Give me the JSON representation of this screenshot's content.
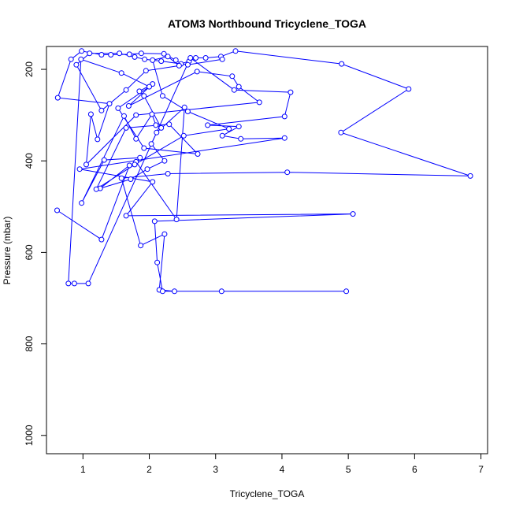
{
  "chart_data": {
    "type": "line",
    "title": "ATOM3 Northbound Tricyclene_TOGA",
    "xlabel": "Tricyclene_TOGA",
    "ylabel": "Pressure (mbar)",
    "xlim": [
      0.45,
      7.1
    ],
    "ylim": [
      1040,
      150
    ],
    "y_inverted": true,
    "xticks": [
      1,
      2,
      3,
      4,
      5,
      6,
      7
    ],
    "yticks": [
      200,
      400,
      600,
      800,
      1000
    ],
    "grid": false,
    "legend": "none",
    "series": [
      {
        "color": "#0000ff",
        "marker": "open-circle",
        "points": [
          [
            0.61,
            508
          ],
          [
            1.28,
            572
          ],
          [
            1.7,
            410
          ],
          [
            1.26,
            460
          ],
          [
            1.72,
            440
          ],
          [
            1.97,
            418
          ],
          [
            2.23,
            400
          ],
          [
            2.03,
            363
          ],
          [
            2.11,
            338
          ],
          [
            2.53,
            283
          ],
          [
            2.41,
            528
          ],
          [
            1.8,
            402
          ],
          [
            1.86,
            393
          ],
          [
            1.32,
            398
          ],
          [
            0.98,
            492
          ],
          [
            1.62,
            302
          ],
          [
            1.8,
            352
          ],
          [
            2.04,
            298
          ],
          [
            2.1,
            322
          ],
          [
            2.18,
            328
          ],
          [
            1.92,
            258
          ],
          [
            1.85,
            248
          ],
          [
            2.05,
            232
          ],
          [
            1.69,
            280
          ],
          [
            2.72,
            205
          ],
          [
            3.25,
            215
          ],
          [
            3.35,
            238
          ],
          [
            3.66,
            272
          ],
          [
            1.8,
            300
          ],
          [
            1.05,
            408
          ],
          [
            1.12,
            298
          ],
          [
            1.22,
            353
          ],
          [
            1.4,
            275
          ],
          [
            0.62,
            262
          ],
          [
            0.82,
            178
          ],
          [
            0.98,
            160
          ],
          [
            1.28,
            168
          ],
          [
            1.42,
            168
          ],
          [
            1.7,
            167
          ],
          [
            1.88,
            165
          ],
          [
            2.22,
            166
          ],
          [
            2.4,
            180
          ],
          [
            2.48,
            188
          ],
          [
            2.6,
            182
          ],
          [
            2.7,
            175
          ],
          [
            2.85,
            175
          ],
          [
            3.08,
            172
          ],
          [
            3.3,
            160
          ],
          [
            4.9,
            188
          ],
          [
            5.91,
            243
          ],
          [
            4.89,
            338
          ],
          [
            6.84,
            433
          ],
          [
            4.08,
            425
          ],
          [
            2.28,
            428
          ],
          [
            1.58,
            438
          ],
          [
            1.87,
            585
          ],
          [
            2.23,
            560
          ],
          [
            2.15,
            682
          ],
          [
            2.38,
            685
          ],
          [
            3.09,
            685
          ],
          [
            4.97,
            685
          ],
          [
            2.2,
            685
          ],
          [
            2.12,
            622
          ],
          [
            2.08,
            532
          ],
          [
            5.07,
            516
          ],
          [
            1.65,
            520
          ],
          [
            2.05,
            446
          ],
          [
            0.95,
            418
          ],
          [
            4.04,
            350
          ],
          [
            3.38,
            352
          ],
          [
            3.1,
            345
          ],
          [
            3.35,
            325
          ],
          [
            2.88,
            322
          ],
          [
            4.04,
            303
          ],
          [
            4.13,
            250
          ],
          [
            3.28,
            245
          ],
          [
            2.62,
            175
          ],
          [
            1.08,
            668
          ],
          [
            0.87,
            668
          ],
          [
            0.78,
            668
          ],
          [
            0.97,
            178
          ],
          [
            1.58,
            208
          ],
          [
            2.0,
            238
          ],
          [
            1.53,
            285
          ],
          [
            1.92,
            372
          ],
          [
            2.73,
            385
          ],
          [
            2.3,
            320
          ],
          [
            1.65,
            328
          ],
          [
            1.2,
            462
          ],
          [
            1.78,
            408
          ],
          [
            2.52,
            345
          ],
          [
            3.2,
            330
          ],
          [
            2.58,
            292
          ],
          [
            2.2,
            258
          ],
          [
            2.05,
            180
          ],
          [
            2.28,
            172
          ],
          [
            2.45,
            192
          ],
          [
            1.95,
            203
          ],
          [
            1.65,
            245
          ],
          [
            1.28,
            290
          ],
          [
            0.9,
            190
          ],
          [
            1.1,
            165
          ],
          [
            1.55,
            165
          ],
          [
            1.78,
            173
          ],
          [
            1.93,
            178
          ],
          [
            2.18,
            182
          ],
          [
            2.58,
            190
          ],
          [
            3.1,
            178
          ]
        ]
      }
    ]
  }
}
